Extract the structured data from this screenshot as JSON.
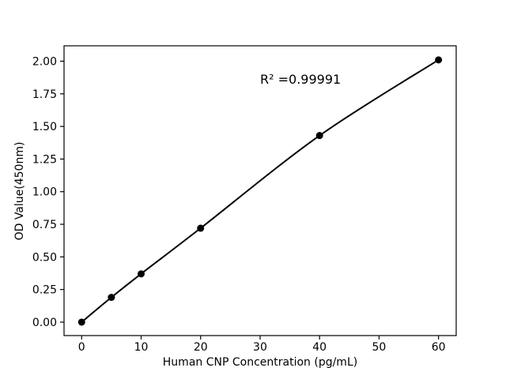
{
  "chart_data": {
    "type": "scatter",
    "title": "",
    "xlabel": "Human CNP Concentration (pg/mL)",
    "ylabel": "OD Value(450nm)",
    "annotation": {
      "text": "R² =0.99991",
      "x_data": 30,
      "y_data": 1.8
    },
    "x": [
      0,
      5,
      10,
      20,
      40,
      60
    ],
    "y": [
      0.0,
      0.19,
      0.37,
      0.72,
      1.43,
      2.01
    ],
    "line_style": "smooth fitted curve through all points",
    "marker_style": "filled circle",
    "xlim": [
      -2.96,
      62.97
    ],
    "ylim": [
      -0.103,
      2.118
    ],
    "xtick_labels": [
      "0",
      "10",
      "20",
      "30",
      "40",
      "50",
      "60"
    ],
    "ytick_labels": [
      "0.00",
      "0.25",
      "0.50",
      "0.75",
      "1.00",
      "1.25",
      "1.50",
      "1.75",
      "2.00"
    ],
    "grid": false,
    "legend": "none",
    "colors": {
      "line": "#000000",
      "marker": "#000000",
      "text": "#000000",
      "axes": "#000000",
      "background": "#ffffff"
    }
  }
}
